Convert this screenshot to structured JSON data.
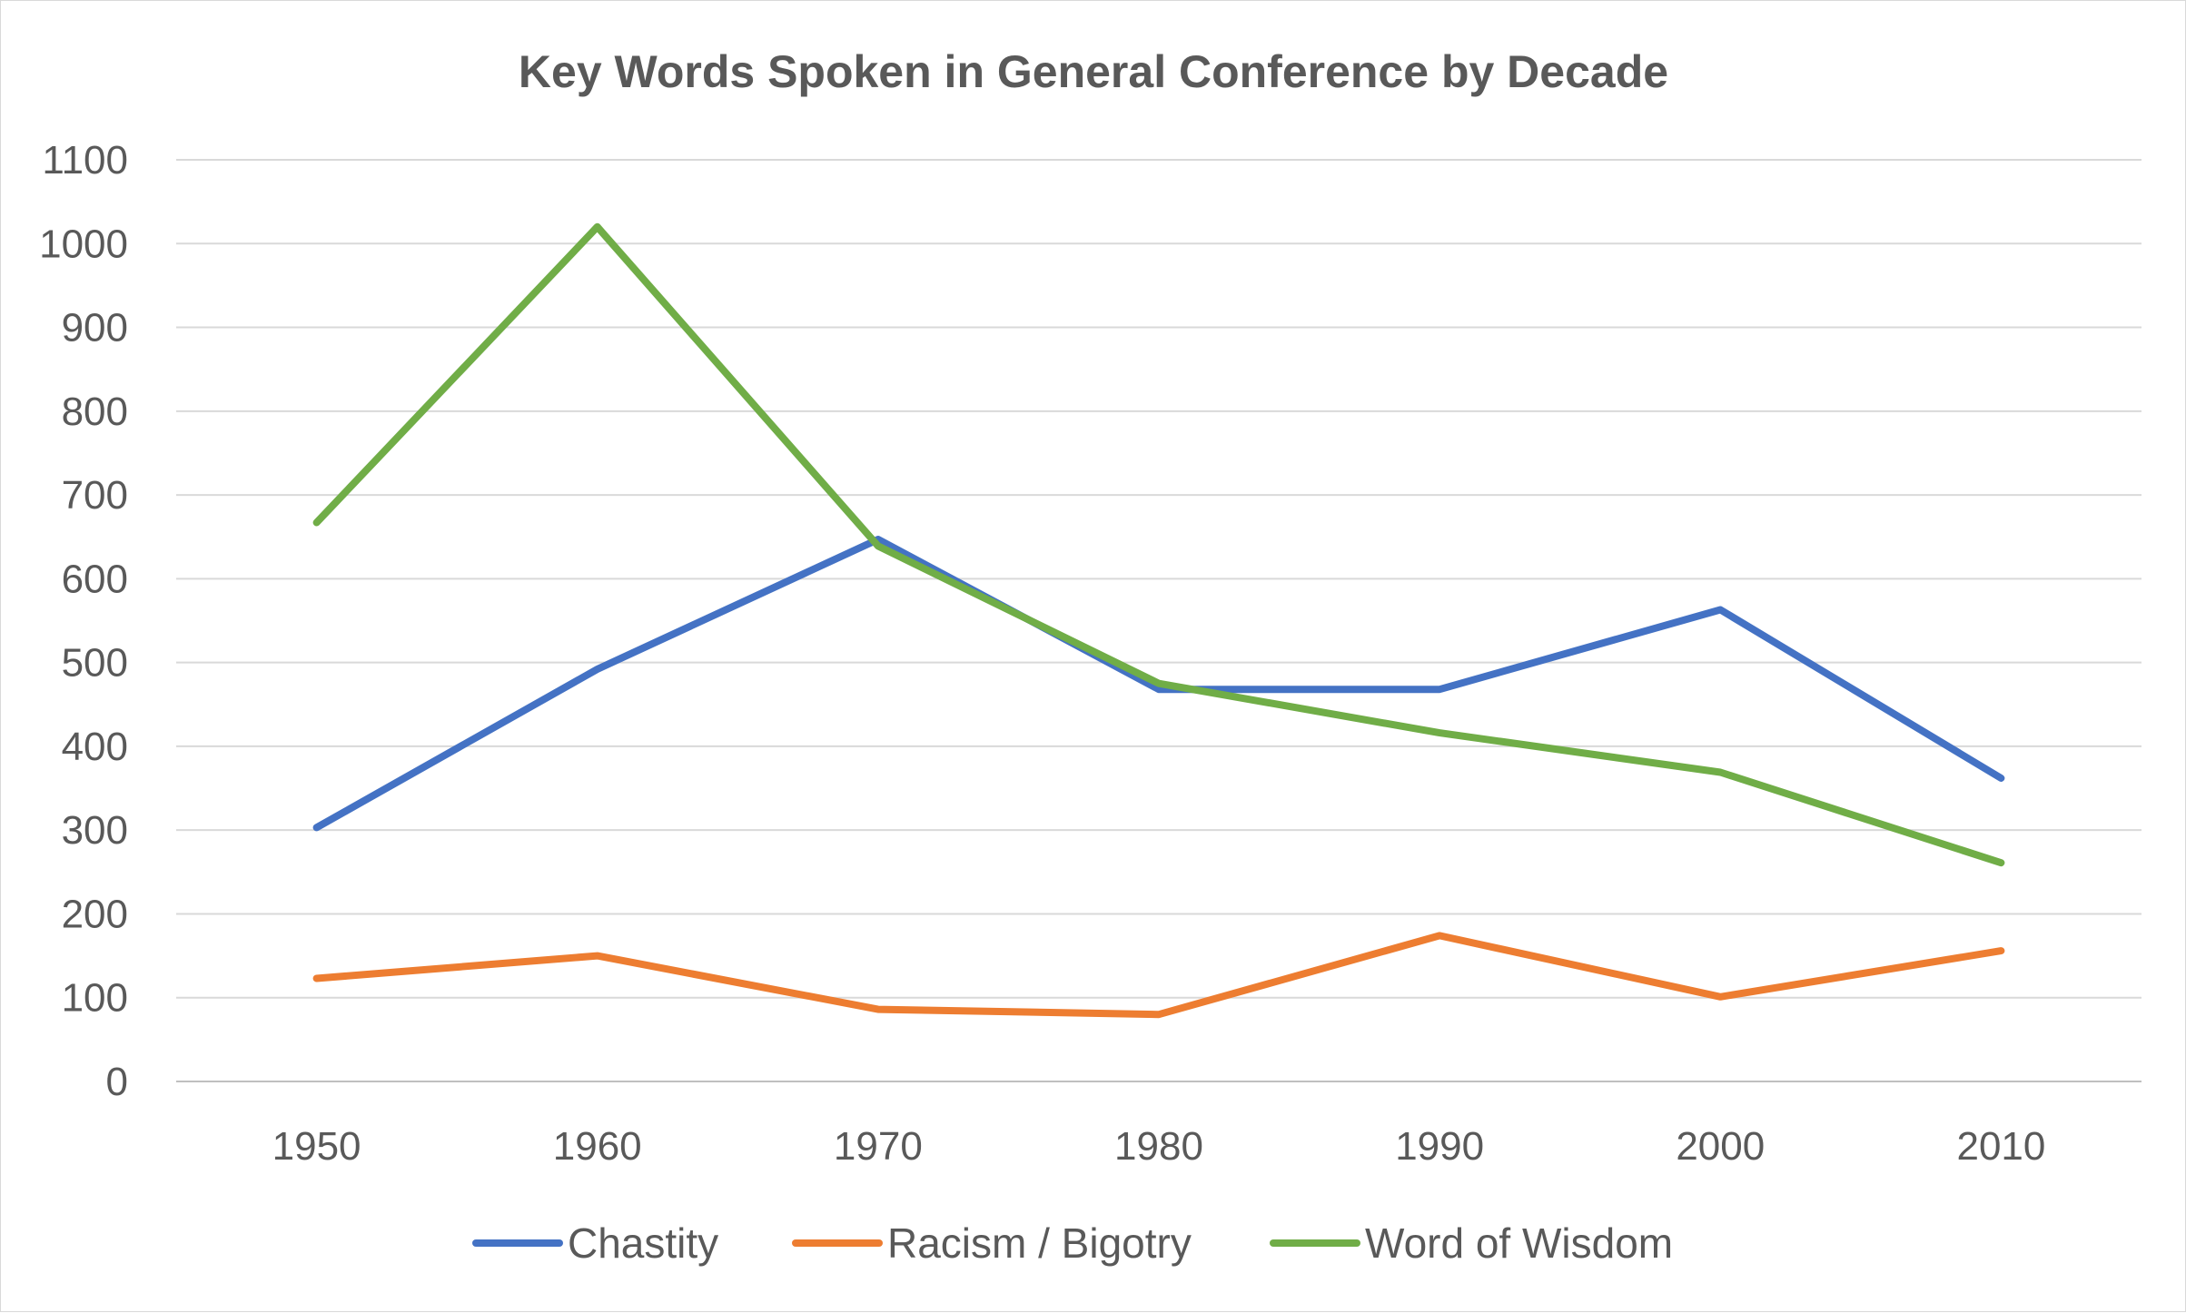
{
  "chart_data": {
    "type": "line",
    "title": "Key Words Spoken in General Conference by Decade",
    "xlabel": "",
    "ylabel": "",
    "categories": [
      "1950",
      "1960",
      "1970",
      "1980",
      "1990",
      "2000",
      "2010"
    ],
    "y_ticks": [
      "0",
      "100",
      "200",
      "300",
      "400",
      "500",
      "600",
      "700",
      "800",
      "900",
      "1000",
      "1100"
    ],
    "ylim": [
      0,
      1100
    ],
    "grid": true,
    "legend_position": "bottom",
    "series": [
      {
        "name": "Chastity",
        "color": "#4472C4",
        "values": [
          303,
          492,
          647,
          468,
          468,
          563,
          362
        ]
      },
      {
        "name": "Racism / Bigotry",
        "color": "#ED7D31",
        "values": [
          123,
          150,
          86,
          80,
          174,
          101,
          156
        ]
      },
      {
        "name": "Word of Wisdom",
        "color": "#70AD47",
        "values": [
          667,
          1020,
          639,
          475,
          416,
          369,
          261
        ]
      }
    ]
  }
}
